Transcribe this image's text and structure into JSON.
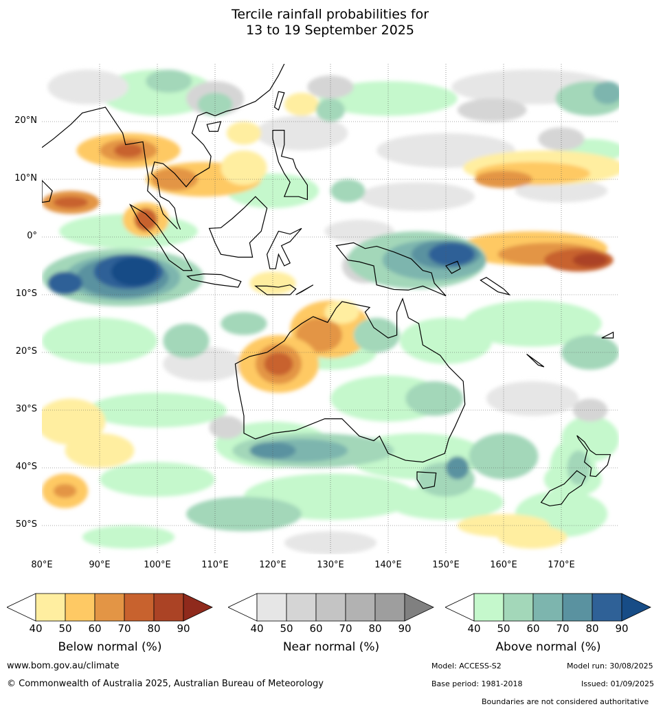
{
  "title_line1": "Tercile rainfall probabilities for",
  "title_line2": "13 to 19 September 2025",
  "map": {
    "lon_range": [
      80,
      180
    ],
    "lat_range": [
      -55,
      30
    ],
    "lat_labels": [
      {
        "lat": 20,
        "text": "20°N"
      },
      {
        "lat": 10,
        "text": "10°N"
      },
      {
        "lat": 0,
        "text": "0°"
      },
      {
        "lat": -10,
        "text": "10°S"
      },
      {
        "lat": -20,
        "text": "20°S"
      },
      {
        "lat": -30,
        "text": "30°S"
      },
      {
        "lat": -40,
        "text": "40°S"
      },
      {
        "lat": -50,
        "text": "50°S"
      }
    ],
    "lon_labels": [
      {
        "lon": 80,
        "text": "80°E"
      },
      {
        "lon": 90,
        "text": "90°E"
      },
      {
        "lon": 100,
        "text": "100°E"
      },
      {
        "lon": 110,
        "text": "110°E"
      },
      {
        "lon": 120,
        "text": "120°E"
      },
      {
        "lon": 130,
        "text": "130°E"
      },
      {
        "lon": 140,
        "text": "140°E"
      },
      {
        "lon": 150,
        "text": "150°E"
      },
      {
        "lon": 160,
        "text": "160°E"
      },
      {
        "lon": 170,
        "text": "170°E"
      }
    ]
  },
  "colorbars": [
    {
      "title": "Below normal (%)",
      "colors": [
        "#ffeea0",
        "#fec964",
        "#e39545",
        "#c8622e",
        "#ab4325",
        "#8f2a1c"
      ],
      "ticks": [
        "40",
        "50",
        "60",
        "70",
        "80",
        "90"
      ]
    },
    {
      "title": "Near normal (%)",
      "colors": [
        "#e6e6e6",
        "#d5d5d5",
        "#c4c4c4",
        "#b2b2b2",
        "#9e9e9e",
        "#808080"
      ],
      "ticks": [
        "40",
        "50",
        "60",
        "70",
        "80",
        "90"
      ]
    },
    {
      "title": "Above normal (%)",
      "colors": [
        "#c5f8cc",
        "#a3d7b9",
        "#7db5ae",
        "#5a92a0",
        "#2f6197",
        "#174c86"
      ],
      "ticks": [
        "40",
        "50",
        "60",
        "70",
        "80",
        "90"
      ]
    }
  ],
  "footer": {
    "website": "www.bom.gov.au/climate",
    "copyright": "© Commonwealth of Australia 2025, Australian Bureau of Meteorology",
    "model": "Model: ACCESS-S2",
    "model_run": "Model run: 30/08/2025",
    "base_period": "Base period: 1981-2018",
    "issued": "Issued: 01/09/2025",
    "disclaimer": "Boundaries are not considered authoritative"
  }
}
